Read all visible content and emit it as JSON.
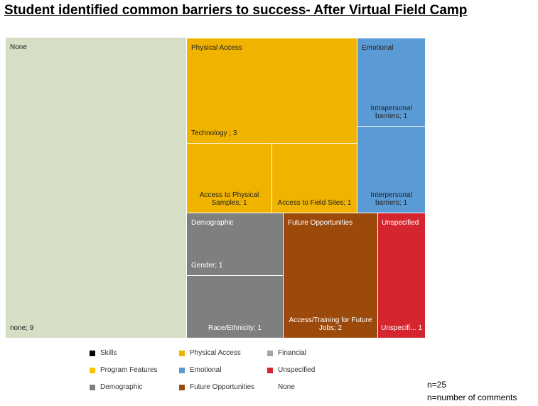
{
  "title": "Student identified common barriers to success- After Virtual Field Camp",
  "chart_data": {
    "type": "treemap",
    "title": "Student identified common barriers to success- After Virtual Field Camp",
    "groups": [
      {
        "name": "None",
        "color": "#d6dec5",
        "items": [
          {
            "label": "none; 9",
            "value": 9
          }
        ]
      },
      {
        "name": "Physical Access",
        "color": "#f0b400",
        "items": [
          {
            "label": "Technology ; 3",
            "value": 3
          },
          {
            "label": "Access to Physical Samples; 1",
            "value": 1
          },
          {
            "label": "Access to Field Sites; 1",
            "value": 1
          }
        ]
      },
      {
        "name": "Emotional",
        "color": "#5b9bd5",
        "items": [
          {
            "label": "Intrapersonal barriers; 1",
            "value": 1
          },
          {
            "label": "Interpersonal barriers; 1",
            "value": 1
          }
        ]
      },
      {
        "name": "Demographic",
        "color": "#7f7f7f",
        "items": [
          {
            "label": "Gender; 1",
            "value": 1
          },
          {
            "label": "Race/Ethnicity; 1",
            "value": 1
          }
        ]
      },
      {
        "name": "Future Opportunities",
        "color": "#9c4a0c",
        "items": [
          {
            "label": "Access/Training for Future Jobs; 2",
            "value": 2
          }
        ]
      },
      {
        "name": "Unspecified",
        "color": "#d5262f",
        "items": [
          {
            "label": "Unspecifi... 1",
            "value": 1
          }
        ]
      }
    ],
    "legend": [
      {
        "name": "Skills",
        "color": "#000000"
      },
      {
        "name": "Physical Access",
        "color": "#f0b400"
      },
      {
        "name": "Financial",
        "color": "#a5a5a5"
      },
      {
        "name": "Program Features",
        "color": "#ffc000"
      },
      {
        "name": "Emotional",
        "color": "#5b9bd5"
      },
      {
        "name": "Unspecified",
        "color": "#d5262f"
      },
      {
        "name": "Demographic",
        "color": "#7f7f7f"
      },
      {
        "name": "Future Opportunities",
        "color": "#9c4a0c"
      },
      {
        "name": "None",
        "color": ""
      }
    ],
    "legend_position": "bottom"
  },
  "notes": [
    "n=25",
    "n=number  of comments"
  ]
}
